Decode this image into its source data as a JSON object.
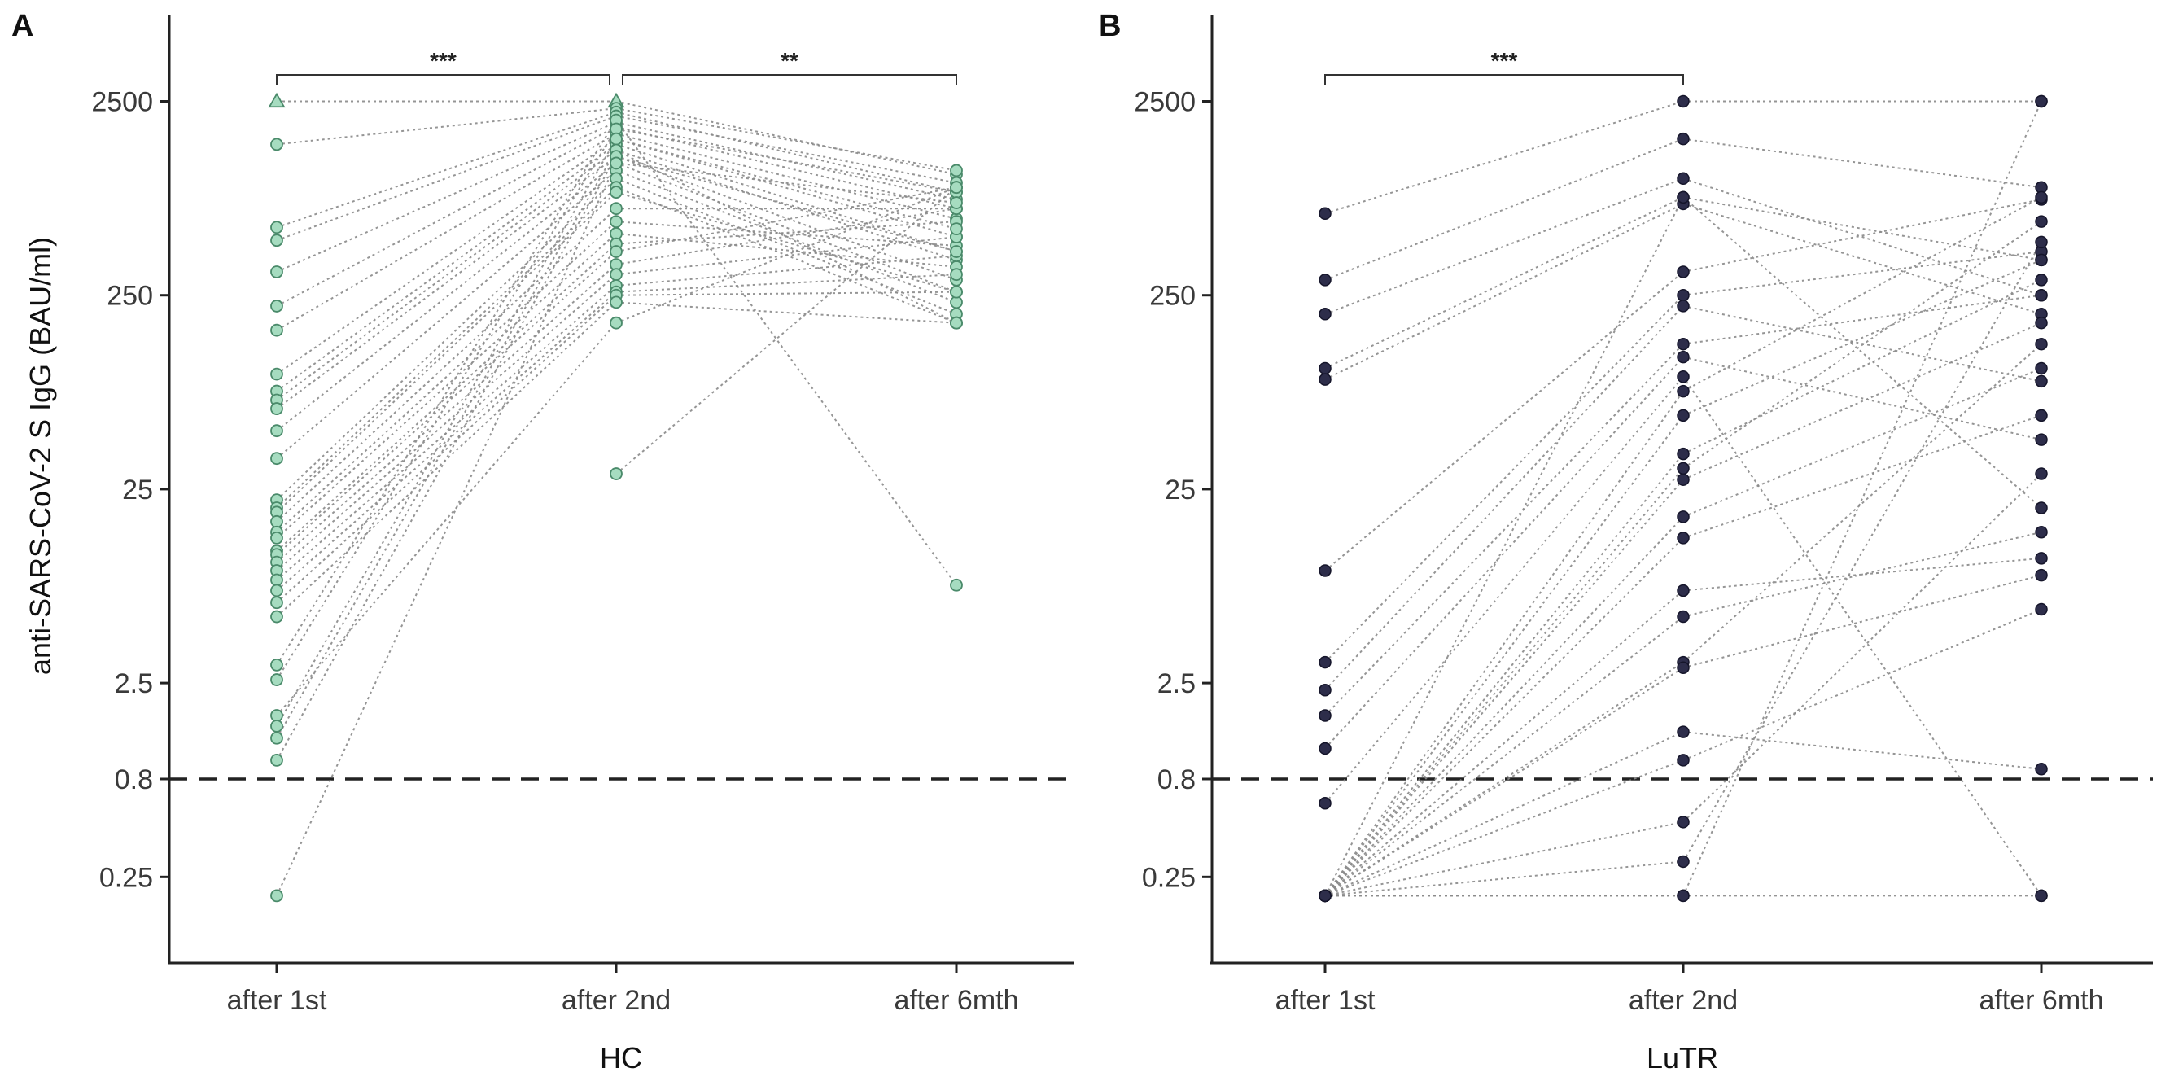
{
  "chart_data": [
    {
      "panel": "A",
      "type": "scatter",
      "style": "paired-lines",
      "title": "",
      "xlabel": "HC",
      "ylabel": "anti-SARS-CoV-2 S IgG (BAU/ml)",
      "categories": [
        "after 1st",
        "after 2nd",
        "after 6mth"
      ],
      "y_scale": "log",
      "ylim": [
        0.09,
        7000
      ],
      "y_ticks": [
        0.25,
        0.8,
        2.5,
        25,
        250,
        2500
      ],
      "y_tick_labels": [
        "0.25",
        "0.8",
        "2.5",
        "25",
        "250",
        "2500"
      ],
      "reference_line": 0.8,
      "marker_color": "#a6dcc0",
      "comparisons": [
        {
          "from": "after 1st",
          "to": "after 2nd",
          "label": "***"
        },
        {
          "from": "after 2nd",
          "to": "after 6mth",
          "label": "**"
        }
      ],
      "subjects": [
        {
          "values": [
            2500,
            2500,
            1050
          ]
        },
        {
          "values": [
            1500,
            2300,
            1100
          ]
        },
        {
          "values": [
            560,
            2200,
            850
          ]
        },
        {
          "values": [
            480,
            2100,
            950
          ]
        },
        {
          "values": [
            330,
            1950,
            780
          ]
        },
        {
          "values": [
            220,
            1850,
            700
          ]
        },
        {
          "values": [
            165,
            1700,
            620
          ]
        },
        {
          "values": [
            98,
            1600,
            500
          ]
        },
        {
          "values": [
            80,
            1500,
            420
          ]
        },
        {
          "values": [
            72,
            1400,
            380
          ]
        },
        {
          "values": [
            65,
            1300,
            300
          ]
        },
        {
          "values": [
            50,
            1200,
            260
          ]
        },
        {
          "values": [
            36,
            1100,
            230
          ]
        },
        {
          "values": [
            22,
            1000,
            200
          ]
        },
        {
          "values": [
            20,
            900,
            180
          ]
        },
        {
          "values": [
            19,
            850,
            260
          ]
        },
        {
          "values": [
            17,
            700,
            700
          ]
        },
        {
          "values": [
            15,
            600,
            450
          ]
        },
        {
          "values": [
            14,
            520,
            350
          ]
        },
        {
          "values": [
            12,
            460,
            600
          ]
        },
        {
          "values": [
            11.5,
            420,
            900
          ]
        },
        {
          "values": [
            10.5,
            360,
            700
          ]
        },
        {
          "values": [
            9.5,
            320,
            500
          ]
        },
        {
          "values": [
            8.5,
            280,
            400
          ]
        },
        {
          "values": [
            7.5,
            260,
            320
          ]
        },
        {
          "values": [
            6.5,
            250,
            260
          ]
        },
        {
          "values": [
            5.5,
            230,
            180
          ]
        },
        {
          "values": [
            3.1,
            2000,
            8
          ]
        },
        {
          "values": [
            2.6,
            1800,
            850
          ]
        },
        {
          "values": [
            1.7,
            180,
            900
          ]
        },
        {
          "values": [
            1.5,
            1600,
            550
          ]
        },
        {
          "values": [
            1.3,
            1400,
            180
          ]
        },
        {
          "values": [
            1.0,
            1300,
            420
          ]
        },
        {
          "values": [
            0.2,
            1200,
            750
          ]
        },
        {
          "values": [
            null,
            30,
            900
          ]
        }
      ]
    },
    {
      "panel": "B",
      "type": "scatter",
      "style": "paired-lines",
      "title": "",
      "xlabel": "LuTR",
      "ylabel": "",
      "categories": [
        "after 1st",
        "after 2nd",
        "after 6mth"
      ],
      "y_scale": "log",
      "ylim": [
        0.09,
        7000
      ],
      "y_ticks": [
        0.25,
        0.8,
        2.5,
        25,
        250,
        2500
      ],
      "y_tick_labels": [
        "0.25",
        "0.8",
        "2.5",
        "25",
        "250",
        "2500"
      ],
      "reference_line": 0.8,
      "marker_color": "#2d2d4a",
      "comparisons": [
        {
          "from": "after 1st",
          "to": "after 2nd",
          "label": "***"
        }
      ],
      "subjects": [
        {
          "values": [
            660,
            2500,
            2500
          ]
        },
        {
          "values": [
            300,
            1600,
            900
          ]
        },
        {
          "values": [
            200,
            1000,
            250
          ]
        },
        {
          "values": [
            105,
            800,
            380
          ]
        },
        {
          "values": [
            92,
            740,
            200
          ]
        },
        {
          "values": [
            9.5,
            330,
            780
          ]
        },
        {
          "values": [
            3.2,
            250,
            420
          ]
        },
        {
          "values": [
            2.3,
            220,
            90
          ]
        },
        {
          "values": [
            1.7,
            140,
            250
          ]
        },
        {
          "values": [
            1.15,
            120,
            45
          ]
        },
        {
          "values": [
            0.6,
            95,
            0.2
          ]
        },
        {
          "values": [
            0.2,
            800,
            20
          ]
        },
        {
          "values": [
            0.2,
            80,
            800
          ]
        },
        {
          "values": [
            0.2,
            60,
            380
          ]
        },
        {
          "values": [
            0.2,
            38,
            300
          ]
        },
        {
          "values": [
            0.2,
            32,
            600
          ]
        },
        {
          "values": [
            0.2,
            28,
            180
          ]
        },
        {
          "values": [
            0.2,
            18,
            105
          ]
        },
        {
          "values": [
            0.2,
            14,
            60
          ]
        },
        {
          "values": [
            0.2,
            7.5,
            11
          ]
        },
        {
          "values": [
            0.2,
            5.5,
            15
          ]
        },
        {
          "values": [
            0.2,
            3.2,
            140
          ]
        },
        {
          "values": [
            0.2,
            3.0,
            9
          ]
        },
        {
          "values": [
            0.2,
            1.4,
            0.9
          ]
        },
        {
          "values": [
            0.2,
            1.0,
            6
          ]
        },
        {
          "values": [
            0.2,
            0.48,
            30
          ]
        },
        {
          "values": [
            0.2,
            0.3,
            470
          ]
        },
        {
          "values": [
            0.2,
            0.2,
            0.2
          ]
        },
        {
          "values": [
            0.2,
            0.2,
            2500
          ]
        }
      ]
    }
  ]
}
